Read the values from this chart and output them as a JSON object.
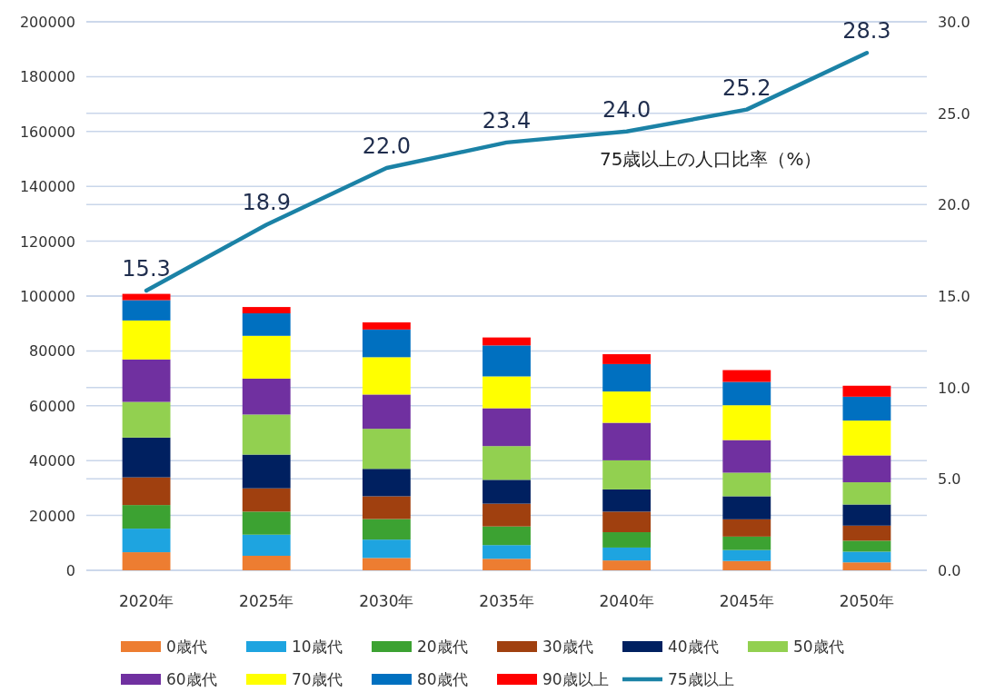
{
  "chart_data": {
    "type": "bar",
    "stacked": true,
    "categories": [
      "2020年",
      "2025年",
      "2030年",
      "2035年",
      "2040年",
      "2045年",
      "2050年"
    ],
    "series": [
      {
        "name": "0歳代",
        "color": "#ed7d31",
        "values": [
          6600,
          5300,
          4500,
          4200,
          3600,
          3400,
          2900
        ]
      },
      {
        "name": "10歳代",
        "color": "#1ea4e0",
        "values": [
          8600,
          7700,
          6700,
          5000,
          4700,
          4000,
          3900
        ]
      },
      {
        "name": "20歳代",
        "color": "#3ca232",
        "values": [
          8600,
          8400,
          7500,
          6800,
          5600,
          4900,
          4000
        ]
      },
      {
        "name": "30歳代",
        "color": "#a0400f",
        "values": [
          10100,
          8500,
          8300,
          8300,
          7500,
          6300,
          5500
        ]
      },
      {
        "name": "40歳代",
        "color": "#002060",
        "values": [
          14500,
          12300,
          10000,
          8700,
          8100,
          8400,
          7700
        ]
      },
      {
        "name": "50歳代",
        "color": "#92d050",
        "values": [
          13000,
          14600,
          14600,
          12300,
          10600,
          8600,
          8100
        ]
      },
      {
        "name": "60歳代",
        "color": "#7030a0",
        "values": [
          15500,
          13100,
          12500,
          13800,
          13700,
          11900,
          9800
        ]
      },
      {
        "name": "70歳代",
        "color": "#ffff00",
        "values": [
          14200,
          15600,
          13600,
          11600,
          11400,
          12700,
          12700
        ]
      },
      {
        "name": "80歳代",
        "color": "#0070c0",
        "values": [
          7400,
          8200,
          10100,
          11300,
          10000,
          8500,
          8700
        ]
      },
      {
        "name": "90歳以上",
        "color": "#ff0000",
        "values": [
          2300,
          2300,
          2600,
          2900,
          3600,
          4300,
          4000
        ]
      },
      {
        "name": "75歳以上",
        "type": "line",
        "axis": "y2",
        "color": "#1b82a6",
        "values": [
          15.3,
          18.9,
          22.0,
          23.4,
          24.0,
          25.2,
          28.3
        ],
        "value_labels": [
          "15.3",
          "18.9",
          "22.0",
          "23.4",
          "24.0",
          "25.2",
          "28.3"
        ]
      }
    ],
    "ylim": [
      0,
      200000
    ],
    "yticks": [
      0,
      20000,
      40000,
      60000,
      80000,
      100000,
      120000,
      140000,
      160000,
      180000,
      200000
    ],
    "y2lim": [
      0,
      30
    ],
    "y2ticks": [
      {
        "value": 0,
        "label": "0.0"
      },
      {
        "value": 5,
        "label": "5.0"
      },
      {
        "value": 10,
        "label": "10.0"
      },
      {
        "value": 15,
        "label": "15.0"
      },
      {
        "value": 20,
        "label": "20.0"
      },
      {
        "value": 25,
        "label": "25.0"
      },
      {
        "value": 30,
        "label": "30.0"
      }
    ],
    "annotations": [
      "75歳以上の人口比率（%）"
    ],
    "grid": true,
    "legend": "bottom"
  }
}
